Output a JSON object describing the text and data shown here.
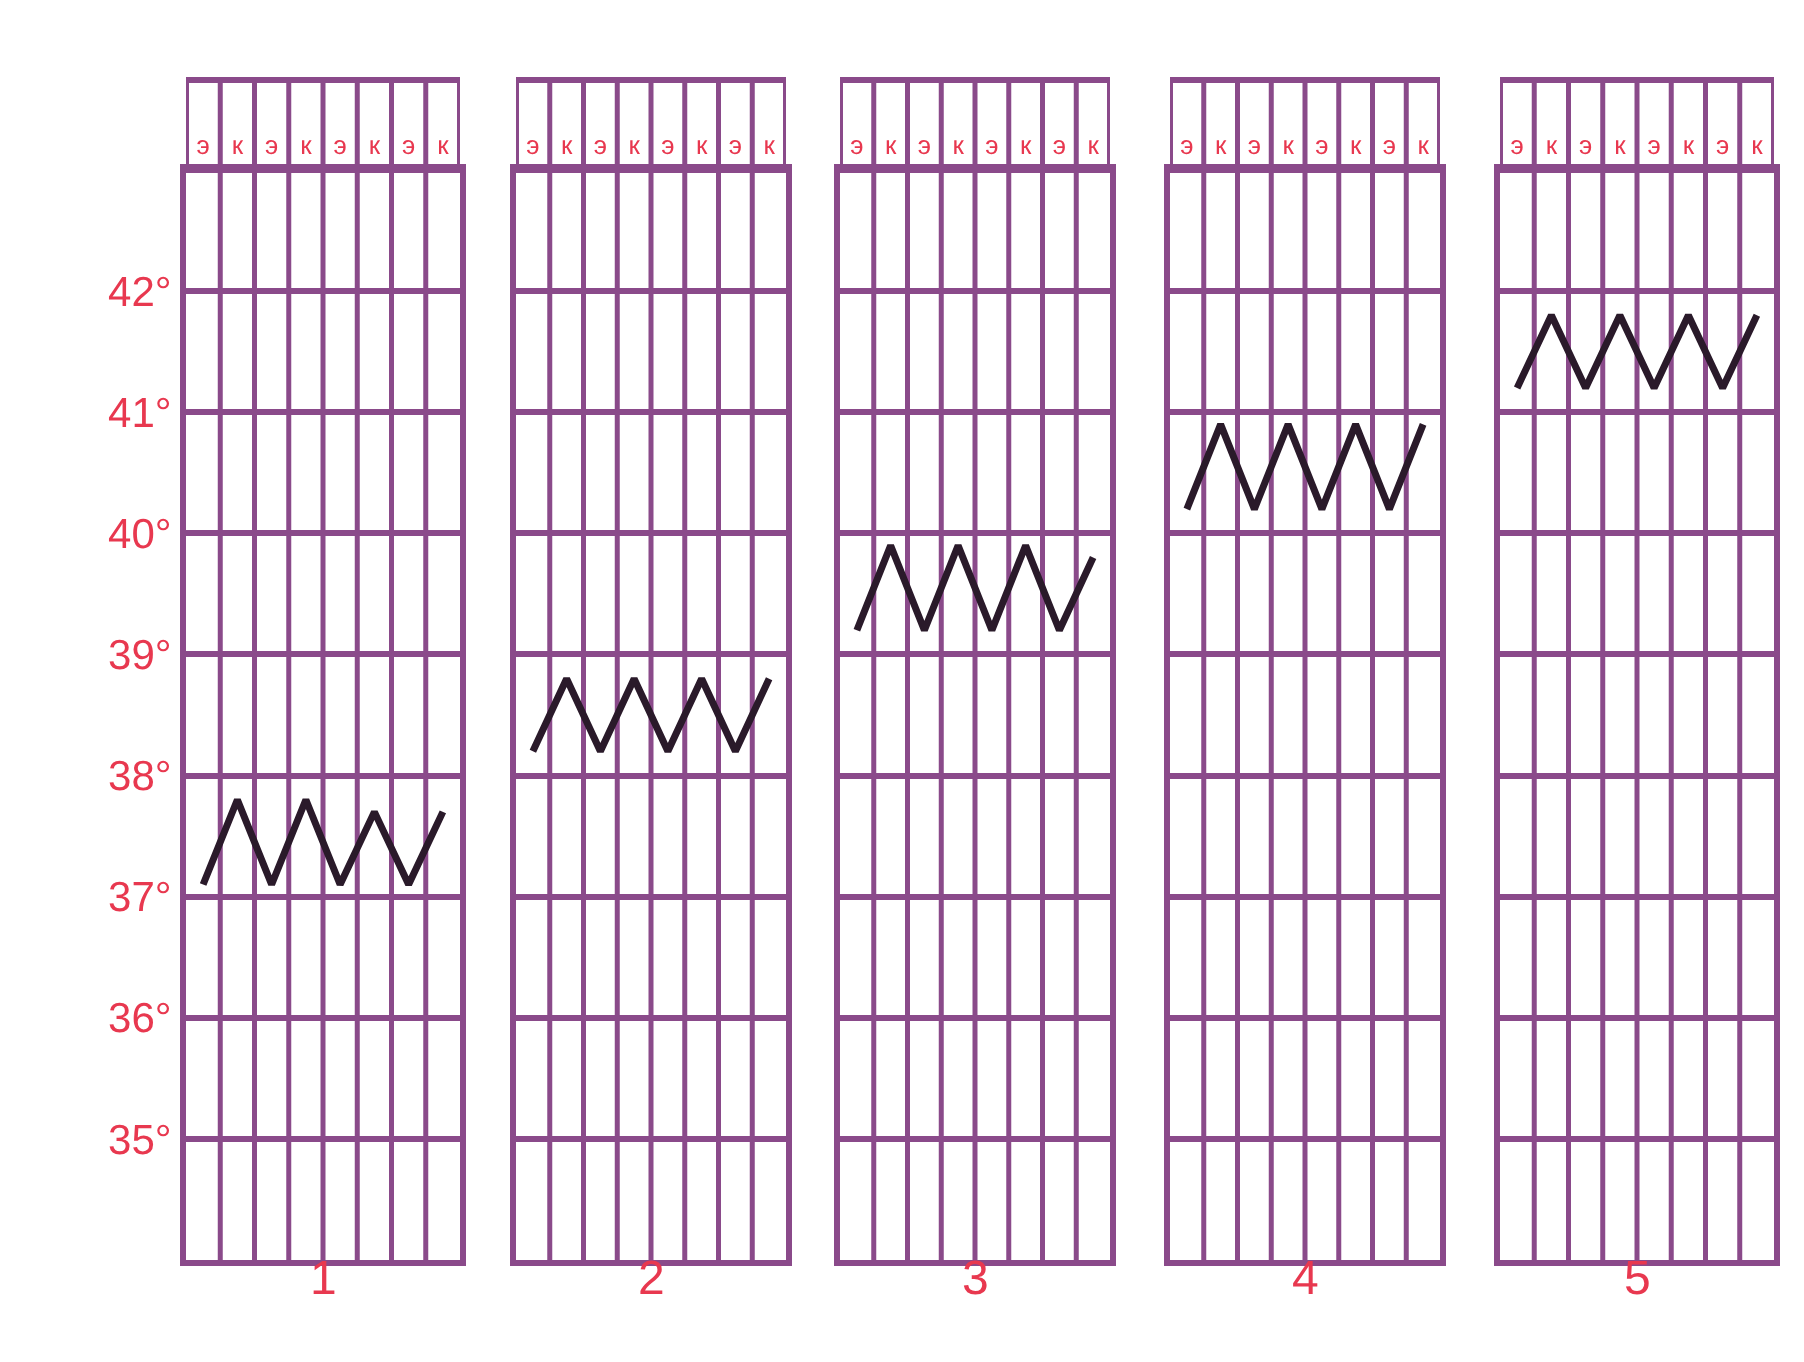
{
  "chart_data": [
    {
      "type": "line",
      "xlabel": "1",
      "categories": [
        "э",
        "к",
        "э",
        "к",
        "э",
        "к",
        "э",
        "к"
      ],
      "series": [
        {
          "color": "#2a1a2a",
          "values": [
            37.1,
            37.8,
            37.1,
            37.8,
            37.1,
            37.7,
            37.1,
            37.7
          ]
        }
      ],
      "ylim": [
        34,
        43
      ],
      "yticks": [
        {
          "value": 35,
          "label": "35°"
        },
        {
          "value": 36,
          "label": "36°"
        },
        {
          "value": 37,
          "label": "37°"
        },
        {
          "value": 38,
          "label": "38°"
        },
        {
          "value": 39,
          "label": "39°"
        },
        {
          "value": 40,
          "label": "40°"
        },
        {
          "value": 41,
          "label": "41°"
        },
        {
          "value": 42,
          "label": "42°"
        }
      ],
      "grid": true,
      "marker": "none",
      "line_style": "solid"
    },
    {
      "type": "line",
      "xlabel": "2",
      "categories": [
        "э",
        "к",
        "э",
        "к",
        "э",
        "к",
        "э",
        "к"
      ],
      "series": [
        {
          "color": "#2a1a2a",
          "values": [
            38.2,
            38.8,
            38.2,
            38.8,
            38.2,
            38.8,
            38.2,
            38.8
          ]
        }
      ],
      "ylim": [
        34,
        43
      ],
      "yticks": [
        {
          "value": 35,
          "label": null
        },
        {
          "value": 36,
          "label": null
        },
        {
          "value": 37,
          "label": null
        },
        {
          "value": 38,
          "label": null
        },
        {
          "value": 39,
          "label": null
        },
        {
          "value": 40,
          "label": null
        },
        {
          "value": 41,
          "label": null
        },
        {
          "value": 42,
          "label": null
        }
      ],
      "tick_labels": "x",
      "grid": true,
      "marker": "none",
      "line_style": "solid"
    },
    {
      "type": "line",
      "xlabel": "3",
      "categories": [
        "э",
        "к",
        "э",
        "к",
        "э",
        "к",
        "э",
        "к"
      ],
      "series": [
        {
          "color": "#2a1a2a",
          "values": [
            39.2,
            39.9,
            39.2,
            39.9,
            39.2,
            39.9,
            39.2,
            39.8
          ]
        }
      ],
      "ylim": [
        34,
        43
      ],
      "yticks": [
        {
          "value": 35,
          "label": null
        },
        {
          "value": 36,
          "label": null
        },
        {
          "value": 37,
          "label": null
        },
        {
          "value": 38,
          "label": null
        },
        {
          "value": 39,
          "label": null
        },
        {
          "value": 40,
          "label": null
        },
        {
          "value": 41,
          "label": null
        },
        {
          "value": 42,
          "label": null
        }
      ],
      "tick_labels": "x",
      "grid": true,
      "marker": "none",
      "line_style": "solid"
    },
    {
      "type": "line",
      "xlabel": "4",
      "categories": [
        "э",
        "к",
        "э",
        "к",
        "э",
        "к",
        "э",
        "к"
      ],
      "series": [
        {
          "color": "#2a1a2a",
          "values": [
            40.2,
            40.9,
            40.2,
            40.9,
            40.2,
            40.9,
            40.2,
            40.9
          ]
        }
      ],
      "ylim": [
        34,
        43
      ],
      "yticks": [
        {
          "value": 35,
          "label": null
        },
        {
          "value": 36,
          "label": null
        },
        {
          "value": 37,
          "label": null
        },
        {
          "value": 38,
          "label": null
        },
        {
          "value": 39,
          "label": null
        },
        {
          "value": 40,
          "label": null
        },
        {
          "value": 41,
          "label": null
        },
        {
          "value": 42,
          "label": null
        }
      ],
      "tick_labels": "x",
      "grid": true,
      "marker": "none",
      "line_style": "solid"
    },
    {
      "type": "line",
      "xlabel": "5",
      "categories": [
        "э",
        "к",
        "э",
        "к",
        "э",
        "к",
        "э",
        "к"
      ],
      "series": [
        {
          "color": "#2a1a2a",
          "values": [
            41.2,
            41.8,
            41.2,
            41.8,
            41.2,
            41.8,
            41.2,
            41.8
          ]
        }
      ],
      "ylim": [
        34,
        43
      ],
      "yticks": [
        {
          "value": 35,
          "label": null
        },
        {
          "value": 36,
          "label": null
        },
        {
          "value": 37,
          "label": null
        },
        {
          "value": 38,
          "label": null
        },
        {
          "value": 39,
          "label": null
        },
        {
          "value": 40,
          "label": null
        },
        {
          "value": 41,
          "label": null
        },
        {
          "value": 42,
          "label": null
        }
      ],
      "tick_labels": "x",
      "grid": true,
      "marker": "none",
      "line_style": "solid"
    }
  ]
}
